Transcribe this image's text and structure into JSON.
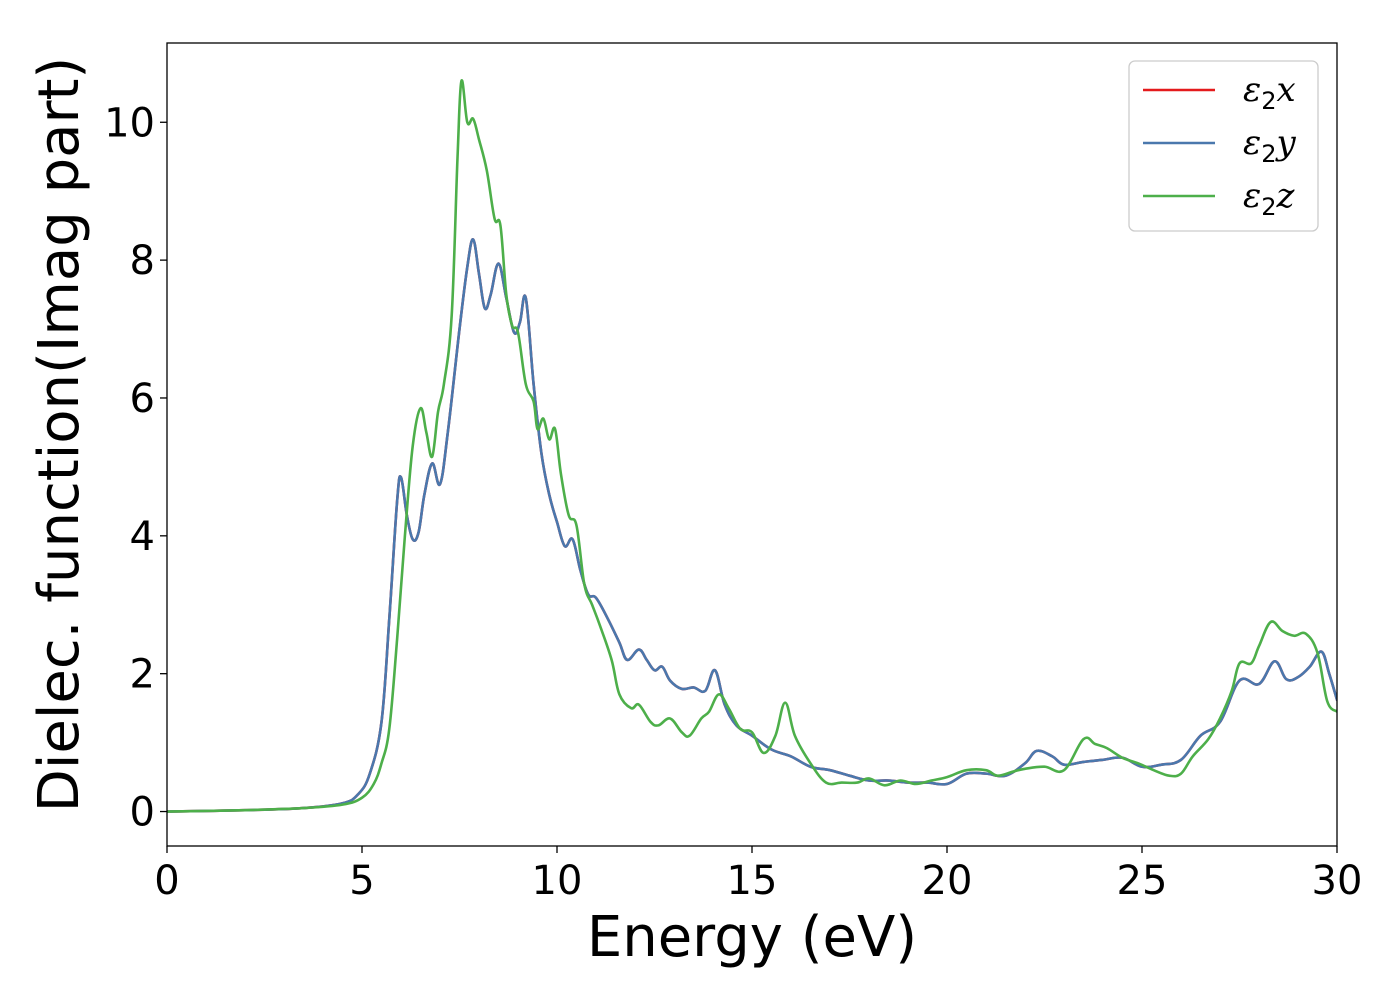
{
  "chart_data": {
    "type": "line",
    "title": "",
    "xlabel": "Energy (eV)",
    "ylabel": "Dielec. function(Imag part)",
    "xlim": [
      0,
      30
    ],
    "ylim": [
      -0.5,
      11.15
    ],
    "xticks": [
      0,
      5,
      10,
      15,
      20,
      25,
      30
    ],
    "yticks": [
      0,
      2,
      4,
      6,
      8,
      10
    ],
    "grid": false,
    "legend_position": "top-right",
    "series": [
      {
        "name": "ε2x",
        "symbol": "ε",
        "subscript": "2",
        "suffix": "x",
        "color": "#e41a1c",
        "points": [
          [
            0,
            0
          ],
          [
            2,
            0.02
          ],
          [
            3.5,
            0.05
          ],
          [
            4.5,
            0.12
          ],
          [
            4.9,
            0.25
          ],
          [
            5.2,
            0.55
          ],
          [
            5.5,
            1.3
          ],
          [
            5.7,
            2.8
          ],
          [
            5.9,
            4.5
          ],
          [
            6.0,
            4.85
          ],
          [
            6.15,
            4.3
          ],
          [
            6.3,
            3.95
          ],
          [
            6.45,
            4.05
          ],
          [
            6.6,
            4.6
          ],
          [
            6.8,
            5.05
          ],
          [
            7.0,
            4.75
          ],
          [
            7.2,
            5.5
          ],
          [
            7.5,
            7.0
          ],
          [
            7.7,
            7.9
          ],
          [
            7.85,
            8.3
          ],
          [
            8.0,
            7.8
          ],
          [
            8.15,
            7.3
          ],
          [
            8.3,
            7.5
          ],
          [
            8.5,
            7.95
          ],
          [
            8.7,
            7.45
          ],
          [
            8.9,
            6.95
          ],
          [
            9.05,
            7.1
          ],
          [
            9.2,
            7.45
          ],
          [
            9.4,
            6.2
          ],
          [
            9.6,
            5.2
          ],
          [
            9.8,
            4.6
          ],
          [
            10.0,
            4.2
          ],
          [
            10.2,
            3.85
          ],
          [
            10.4,
            3.95
          ],
          [
            10.6,
            3.5
          ],
          [
            10.8,
            3.15
          ],
          [
            11.0,
            3.1
          ],
          [
            11.3,
            2.8
          ],
          [
            11.6,
            2.45
          ],
          [
            11.8,
            2.2
          ],
          [
            12.1,
            2.35
          ],
          [
            12.3,
            2.2
          ],
          [
            12.5,
            2.05
          ],
          [
            12.7,
            2.1
          ],
          [
            12.9,
            1.9
          ],
          [
            13.2,
            1.78
          ],
          [
            13.5,
            1.8
          ],
          [
            13.8,
            1.75
          ],
          [
            14.05,
            2.05
          ],
          [
            14.3,
            1.55
          ],
          [
            14.6,
            1.25
          ],
          [
            15.0,
            1.1
          ],
          [
            15.5,
            0.9
          ],
          [
            16.0,
            0.8
          ],
          [
            16.5,
            0.65
          ],
          [
            17.0,
            0.6
          ],
          [
            17.5,
            0.52
          ],
          [
            18.0,
            0.45
          ],
          [
            18.5,
            0.45
          ],
          [
            19.0,
            0.42
          ],
          [
            19.5,
            0.42
          ],
          [
            20.0,
            0.4
          ],
          [
            20.5,
            0.55
          ],
          [
            21.0,
            0.55
          ],
          [
            21.5,
            0.52
          ],
          [
            22.0,
            0.7
          ],
          [
            22.3,
            0.88
          ],
          [
            22.7,
            0.8
          ],
          [
            23.0,
            0.68
          ],
          [
            23.5,
            0.72
          ],
          [
            24.0,
            0.75
          ],
          [
            24.5,
            0.78
          ],
          [
            25.0,
            0.65
          ],
          [
            25.5,
            0.68
          ],
          [
            26.0,
            0.75
          ],
          [
            26.5,
            1.1
          ],
          [
            27.0,
            1.3
          ],
          [
            27.5,
            1.9
          ],
          [
            28.0,
            1.85
          ],
          [
            28.4,
            2.18
          ],
          [
            28.7,
            1.92
          ],
          [
            29.0,
            1.95
          ],
          [
            29.3,
            2.1
          ],
          [
            29.6,
            2.32
          ],
          [
            29.8,
            2.0
          ],
          [
            30.0,
            1.62
          ]
        ]
      },
      {
        "name": "ε2y",
        "symbol": "ε",
        "subscript": "2",
        "suffix": "y",
        "color": "#4a78ad",
        "points": [
          [
            0,
            0
          ],
          [
            2,
            0.02
          ],
          [
            3.5,
            0.05
          ],
          [
            4.5,
            0.12
          ],
          [
            4.9,
            0.25
          ],
          [
            5.2,
            0.55
          ],
          [
            5.5,
            1.3
          ],
          [
            5.7,
            2.8
          ],
          [
            5.9,
            4.5
          ],
          [
            6.0,
            4.85
          ],
          [
            6.15,
            4.3
          ],
          [
            6.3,
            3.95
          ],
          [
            6.45,
            4.05
          ],
          [
            6.6,
            4.6
          ],
          [
            6.8,
            5.05
          ],
          [
            7.0,
            4.75
          ],
          [
            7.2,
            5.5
          ],
          [
            7.5,
            7.0
          ],
          [
            7.7,
            7.9
          ],
          [
            7.85,
            8.3
          ],
          [
            8.0,
            7.8
          ],
          [
            8.15,
            7.3
          ],
          [
            8.3,
            7.5
          ],
          [
            8.5,
            7.95
          ],
          [
            8.7,
            7.45
          ],
          [
            8.9,
            6.95
          ],
          [
            9.05,
            7.1
          ],
          [
            9.2,
            7.45
          ],
          [
            9.4,
            6.2
          ],
          [
            9.6,
            5.2
          ],
          [
            9.8,
            4.6
          ],
          [
            10.0,
            4.2
          ],
          [
            10.2,
            3.85
          ],
          [
            10.4,
            3.95
          ],
          [
            10.6,
            3.5
          ],
          [
            10.8,
            3.15
          ],
          [
            11.0,
            3.1
          ],
          [
            11.3,
            2.8
          ],
          [
            11.6,
            2.45
          ],
          [
            11.8,
            2.2
          ],
          [
            12.1,
            2.35
          ],
          [
            12.3,
            2.2
          ],
          [
            12.5,
            2.05
          ],
          [
            12.7,
            2.1
          ],
          [
            12.9,
            1.9
          ],
          [
            13.2,
            1.78
          ],
          [
            13.5,
            1.8
          ],
          [
            13.8,
            1.75
          ],
          [
            14.05,
            2.05
          ],
          [
            14.3,
            1.55
          ],
          [
            14.6,
            1.25
          ],
          [
            15.0,
            1.1
          ],
          [
            15.5,
            0.9
          ],
          [
            16.0,
            0.8
          ],
          [
            16.5,
            0.65
          ],
          [
            17.0,
            0.6
          ],
          [
            17.5,
            0.52
          ],
          [
            18.0,
            0.45
          ],
          [
            18.5,
            0.45
          ],
          [
            19.0,
            0.42
          ],
          [
            19.5,
            0.42
          ],
          [
            20.0,
            0.4
          ],
          [
            20.5,
            0.55
          ],
          [
            21.0,
            0.55
          ],
          [
            21.5,
            0.52
          ],
          [
            22.0,
            0.7
          ],
          [
            22.3,
            0.88
          ],
          [
            22.7,
            0.8
          ],
          [
            23.0,
            0.68
          ],
          [
            23.5,
            0.72
          ],
          [
            24.0,
            0.75
          ],
          [
            24.5,
            0.78
          ],
          [
            25.0,
            0.65
          ],
          [
            25.5,
            0.68
          ],
          [
            26.0,
            0.75
          ],
          [
            26.5,
            1.1
          ],
          [
            27.0,
            1.3
          ],
          [
            27.5,
            1.9
          ],
          [
            28.0,
            1.85
          ],
          [
            28.4,
            2.18
          ],
          [
            28.7,
            1.92
          ],
          [
            29.0,
            1.95
          ],
          [
            29.3,
            2.1
          ],
          [
            29.6,
            2.32
          ],
          [
            29.8,
            2.0
          ],
          [
            30.0,
            1.62
          ]
        ]
      },
      {
        "name": "ε2z",
        "symbol": "ε",
        "subscript": "2",
        "suffix": "z",
        "color": "#4daf4a",
        "points": [
          [
            0,
            0
          ],
          [
            2,
            0.02
          ],
          [
            3.5,
            0.05
          ],
          [
            4.5,
            0.1
          ],
          [
            5.0,
            0.2
          ],
          [
            5.3,
            0.4
          ],
          [
            5.5,
            0.7
          ],
          [
            5.7,
            1.2
          ],
          [
            5.9,
            2.5
          ],
          [
            6.1,
            4.0
          ],
          [
            6.3,
            5.3
          ],
          [
            6.5,
            5.85
          ],
          [
            6.65,
            5.5
          ],
          [
            6.8,
            5.15
          ],
          [
            6.95,
            5.8
          ],
          [
            7.1,
            6.2
          ],
          [
            7.3,
            7.2
          ],
          [
            7.45,
            9.5
          ],
          [
            7.55,
            10.6
          ],
          [
            7.7,
            10.0
          ],
          [
            7.85,
            10.05
          ],
          [
            8.0,
            9.75
          ],
          [
            8.2,
            9.3
          ],
          [
            8.4,
            8.6
          ],
          [
            8.55,
            8.5
          ],
          [
            8.7,
            7.5
          ],
          [
            8.85,
            7.05
          ],
          [
            9.0,
            6.95
          ],
          [
            9.2,
            6.2
          ],
          [
            9.4,
            5.95
          ],
          [
            9.5,
            5.55
          ],
          [
            9.65,
            5.7
          ],
          [
            9.8,
            5.4
          ],
          [
            9.95,
            5.55
          ],
          [
            10.1,
            4.9
          ],
          [
            10.3,
            4.3
          ],
          [
            10.5,
            4.15
          ],
          [
            10.7,
            3.3
          ],
          [
            10.9,
            3.0
          ],
          [
            11.1,
            2.7
          ],
          [
            11.4,
            2.2
          ],
          [
            11.6,
            1.7
          ],
          [
            11.9,
            1.5
          ],
          [
            12.1,
            1.55
          ],
          [
            12.4,
            1.3
          ],
          [
            12.6,
            1.25
          ],
          [
            12.9,
            1.35
          ],
          [
            13.2,
            1.15
          ],
          [
            13.4,
            1.1
          ],
          [
            13.7,
            1.35
          ],
          [
            13.9,
            1.45
          ],
          [
            14.15,
            1.7
          ],
          [
            14.4,
            1.5
          ],
          [
            14.7,
            1.2
          ],
          [
            15.0,
            1.15
          ],
          [
            15.3,
            0.85
          ],
          [
            15.6,
            1.1
          ],
          [
            15.85,
            1.58
          ],
          [
            16.1,
            1.1
          ],
          [
            16.5,
            0.7
          ],
          [
            16.9,
            0.42
          ],
          [
            17.3,
            0.42
          ],
          [
            17.7,
            0.42
          ],
          [
            18.0,
            0.48
          ],
          [
            18.4,
            0.38
          ],
          [
            18.8,
            0.45
          ],
          [
            19.2,
            0.4
          ],
          [
            19.6,
            0.45
          ],
          [
            20.0,
            0.5
          ],
          [
            20.5,
            0.6
          ],
          [
            21.0,
            0.6
          ],
          [
            21.3,
            0.52
          ],
          [
            21.7,
            0.58
          ],
          [
            22.0,
            0.62
          ],
          [
            22.5,
            0.65
          ],
          [
            23.0,
            0.6
          ],
          [
            23.5,
            1.05
          ],
          [
            23.8,
            0.98
          ],
          [
            24.1,
            0.92
          ],
          [
            24.5,
            0.78
          ],
          [
            24.9,
            0.7
          ],
          [
            25.3,
            0.6
          ],
          [
            25.7,
            0.52
          ],
          [
            26.0,
            0.55
          ],
          [
            26.3,
            0.8
          ],
          [
            26.7,
            1.05
          ],
          [
            27.0,
            1.35
          ],
          [
            27.3,
            1.75
          ],
          [
            27.5,
            2.15
          ],
          [
            27.8,
            2.15
          ],
          [
            28.0,
            2.4
          ],
          [
            28.3,
            2.75
          ],
          [
            28.6,
            2.62
          ],
          [
            28.9,
            2.55
          ],
          [
            29.2,
            2.58
          ],
          [
            29.5,
            2.3
          ],
          [
            29.75,
            1.6
          ],
          [
            30.0,
            1.45
          ]
        ]
      }
    ]
  }
}
